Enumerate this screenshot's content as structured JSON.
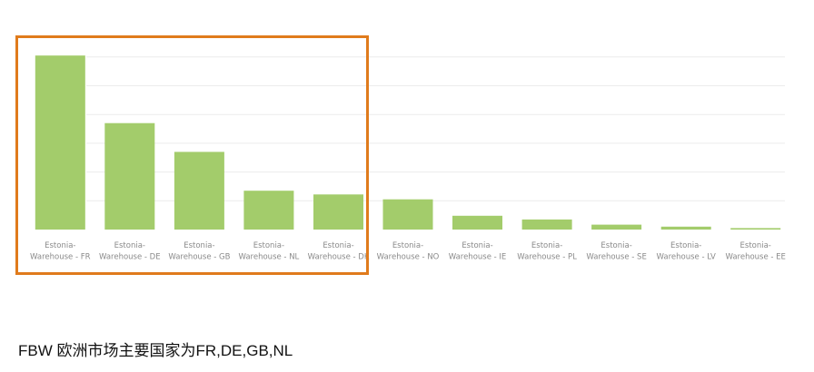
{
  "colors": {
    "bar": "#a3cc6b",
    "gridline": "#ececec",
    "highlight_border": "#e07b1c",
    "tick_label": "#8a8a8a"
  },
  "chart_data": {
    "type": "bar",
    "title": "",
    "xlabel": "",
    "ylabel": "",
    "grid": true,
    "y_axis_labels_visible": false,
    "ylim": [
      0,
      6
    ],
    "categories": [
      [
        "Estonia-",
        "Warehouse - FR"
      ],
      [
        "Estonia-",
        "Warehouse - DE"
      ],
      [
        "Estonia-",
        "Warehouse - GB"
      ],
      [
        "Estonia-",
        "Warehouse - NL"
      ],
      [
        "Estonia-",
        "Warehouse - DK"
      ],
      [
        "Estonia-",
        "Warehouse - NO"
      ],
      [
        "Estonia-",
        "Warehouse - IE"
      ],
      [
        "Estonia-",
        "Warehouse - PL"
      ],
      [
        "Estonia-",
        "Warehouse - SE"
      ],
      [
        "Estonia-",
        "Warehouse - LV"
      ],
      [
        "Estonia-",
        "Warehouse - EE"
      ]
    ],
    "values": [
      6.05,
      3.7,
      2.7,
      1.35,
      1.22,
      1.05,
      0.48,
      0.35,
      0.17,
      0.1,
      0.05
    ]
  },
  "highlight": {
    "highlighted_categories": [
      "FR",
      "DE",
      "GB",
      "NL",
      "DK"
    ]
  },
  "caption": "FBW 欧洲市场主要国家为FR,DE,GB,NL"
}
